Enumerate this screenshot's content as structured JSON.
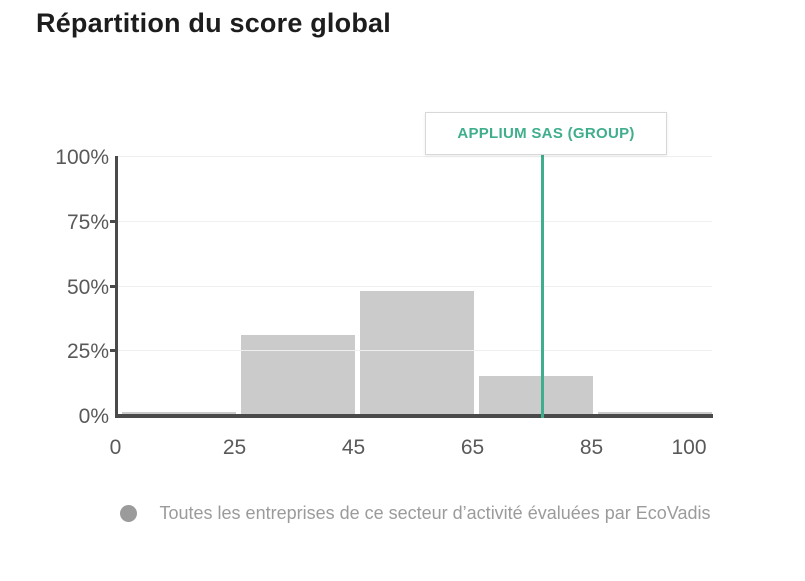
{
  "title": "Répartition du score global",
  "colors": {
    "accent_green": "#3fae8c",
    "bar_gray": "#cbcbcb",
    "legend_gray": "#9b9b9b",
    "axis_dark": "#4a4a4a",
    "gridline": "#efefef"
  },
  "chart_data": {
    "type": "bar",
    "title": "Répartition du score global",
    "categories": [
      "0-25",
      "25-45",
      "45-65",
      "65-85",
      "85-100"
    ],
    "values": [
      1,
      31,
      48,
      15,
      1
    ],
    "bar_color": "#cbcbcb",
    "x_tick_values": [
      0,
      25,
      45,
      65,
      85,
      100
    ],
    "x_tick_labels": [
      "0",
      "25",
      "45",
      "65",
      "85",
      "100"
    ],
    "y_tick_values": [
      100,
      75,
      50,
      25,
      0
    ],
    "y_tick_labels": [
      "100%",
      "75%",
      "50%",
      "25%",
      "0%"
    ],
    "ylim": [
      0,
      100
    ],
    "grid": "horizontal",
    "marker": {
      "label": "APPLIUM SAS (GROUP)",
      "value": 76.5,
      "color": "#3fae8c"
    },
    "legend_position": "bottom",
    "legend": [
      {
        "label": "Toutes les entreprises de ce secteur d’activité évaluées par EcoVadis",
        "color": "#9b9b9b"
      }
    ]
  }
}
